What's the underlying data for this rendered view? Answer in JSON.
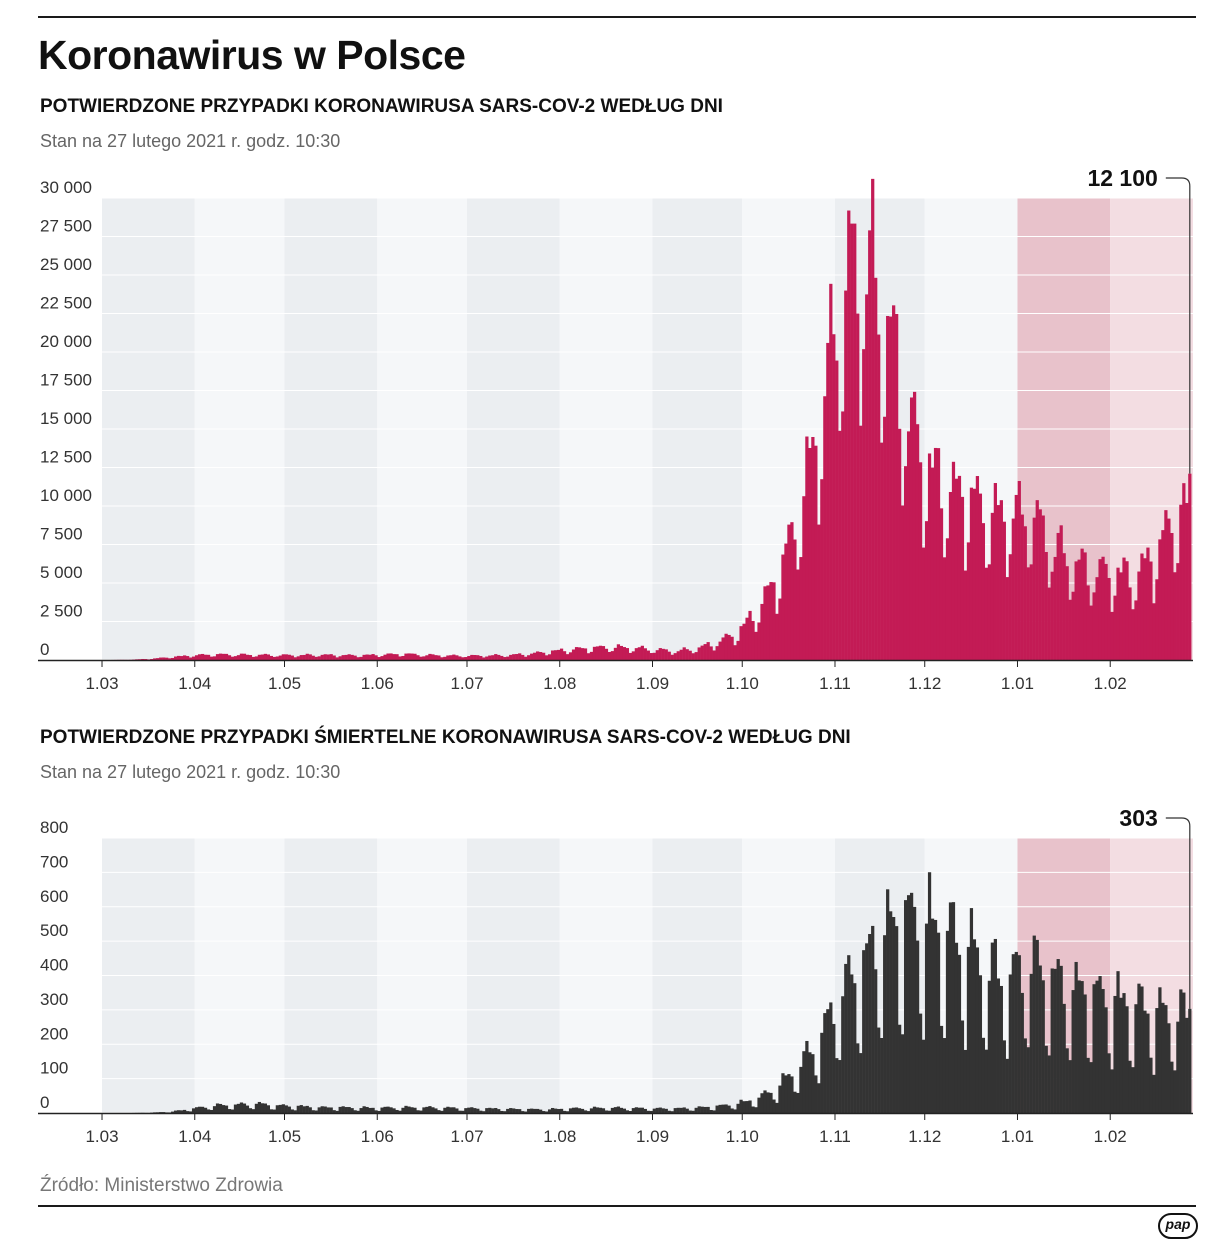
{
  "header": {
    "title": "Koronawirus w Polsce"
  },
  "footer": {
    "source": "Źródło: Ministerstwo Zdrowia",
    "logo_text": "pap"
  },
  "colors": {
    "cases_bar": "#c31b55",
    "deaths_bar": "#333333",
    "stripe_dark": "#ebeef1",
    "stripe_light": "#f5f7f9",
    "highlight_dark": "#e8c2cb",
    "highlight_light": "#f3dde2"
  },
  "chart_data": [
    {
      "type": "bar",
      "title": "POTWIERDZONE PRZYPADKI KORONAWIRUSA SARS-COV-2 WEDŁUG DNI",
      "subtitle": "Stan na 27 lutego 2021 r. godz. 10:30",
      "x_range": [
        "2020-03-03",
        "2021-02-27"
      ],
      "x_tick_labels": [
        "1.03",
        "1.04",
        "1.05",
        "1.06",
        "1.07",
        "1.08",
        "1.09",
        "1.10",
        "1.11",
        "1.12",
        "1.01",
        "1.02"
      ],
      "ylim": [
        0,
        30000
      ],
      "y_ticks": [
        0,
        2500,
        5000,
        7500,
        10000,
        12500,
        15000,
        17500,
        20000,
        22500,
        25000,
        27500,
        30000
      ],
      "y_tick_labels": [
        "0",
        "2 500",
        "5 000",
        "7 500",
        "10 000",
        "12 500",
        "15 000",
        "17 500",
        "20 000",
        "22 500",
        "25 000",
        "27 500",
        "30 000"
      ],
      "highlight_months": [
        "1.01",
        "1.02"
      ],
      "last_value": 12100,
      "last_value_label": "12 100",
      "weekly_estimates": [
        {
          "week_of": "2020-03-03",
          "value": 0
        },
        {
          "week_of": "2020-03-10",
          "value": 20
        },
        {
          "week_of": "2020-03-17",
          "value": 80
        },
        {
          "week_of": "2020-03-24",
          "value": 190
        },
        {
          "week_of": "2020-03-31",
          "value": 290
        },
        {
          "week_of": "2020-04-07",
          "value": 350
        },
        {
          "week_of": "2020-04-14",
          "value": 330
        },
        {
          "week_of": "2020-04-21",
          "value": 320
        },
        {
          "week_of": "2020-04-28",
          "value": 300
        },
        {
          "week_of": "2020-05-05",
          "value": 300
        },
        {
          "week_of": "2020-05-12",
          "value": 320
        },
        {
          "week_of": "2020-05-19",
          "value": 300
        },
        {
          "week_of": "2020-05-26",
          "value": 290
        },
        {
          "week_of": "2020-06-02",
          "value": 330
        },
        {
          "week_of": "2020-06-09",
          "value": 380
        },
        {
          "week_of": "2020-06-16",
          "value": 320
        },
        {
          "week_of": "2020-06-23",
          "value": 280
        },
        {
          "week_of": "2020-06-30",
          "value": 260
        },
        {
          "week_of": "2020-07-07",
          "value": 280
        },
        {
          "week_of": "2020-07-14",
          "value": 300
        },
        {
          "week_of": "2020-07-21",
          "value": 380
        },
        {
          "week_of": "2020-07-28",
          "value": 520
        },
        {
          "week_of": "2020-08-04",
          "value": 650
        },
        {
          "week_of": "2020-08-11",
          "value": 750
        },
        {
          "week_of": "2020-08-18",
          "value": 800
        },
        {
          "week_of": "2020-08-25",
          "value": 750
        },
        {
          "week_of": "2020-09-01",
          "value": 650
        },
        {
          "week_of": "2020-09-08",
          "value": 550
        },
        {
          "week_of": "2020-09-15",
          "value": 700
        },
        {
          "week_of": "2020-09-22",
          "value": 1100
        },
        {
          "week_of": "2020-09-29",
          "value": 1700
        },
        {
          "week_of": "2020-10-06",
          "value": 3200
        },
        {
          "week_of": "2020-10-13",
          "value": 5500
        },
        {
          "week_of": "2020-10-20",
          "value": 9500
        },
        {
          "week_of": "2020-10-27",
          "value": 15500
        },
        {
          "week_of": "2020-11-03",
          "value": 23000
        },
        {
          "week_of": "2020-11-10",
          "value": 25000
        },
        {
          "week_of": "2020-11-17",
          "value": 21500
        },
        {
          "week_of": "2020-11-24",
          "value": 15500
        },
        {
          "week_of": "2020-12-01",
          "value": 12000
        },
        {
          "week_of": "2020-12-08",
          "value": 10500
        },
        {
          "week_of": "2020-12-15",
          "value": 10200
        },
        {
          "week_of": "2020-12-22",
          "value": 9000
        },
        {
          "week_of": "2020-12-29",
          "value": 9000
        },
        {
          "week_of": "2021-01-05",
          "value": 9000
        },
        {
          "week_of": "2021-01-12",
          "value": 7200
        },
        {
          "week_of": "2021-01-19",
          "value": 6000
        },
        {
          "week_of": "2021-01-26",
          "value": 5500
        },
        {
          "week_of": "2021-02-02",
          "value": 5400
        },
        {
          "week_of": "2021-02-09",
          "value": 5200
        },
        {
          "week_of": "2021-02-16",
          "value": 6800
        },
        {
          "week_of": "2021-02-23",
          "value": 9200
        }
      ]
    },
    {
      "type": "bar",
      "title": "POTWIERDZONE PRZYPADKI ŚMIERTELNE KORONAWIRUSA SARS-COV-2 WEDŁUG DNI",
      "subtitle": "Stan na 27 lutego 2021 r. godz. 10:30",
      "x_range": [
        "2020-03-03",
        "2021-02-27"
      ],
      "x_tick_labels": [
        "1.03",
        "1.04",
        "1.05",
        "1.06",
        "1.07",
        "1.08",
        "1.09",
        "1.10",
        "1.11",
        "1.12",
        "1.01",
        "1.02"
      ],
      "ylim": [
        0,
        800
      ],
      "y_ticks": [
        0,
        100,
        200,
        300,
        400,
        500,
        600,
        700,
        800
      ],
      "y_tick_labels": [
        "0",
        "100",
        "200",
        "300",
        "400",
        "500",
        "600",
        "700",
        "800"
      ],
      "highlight_months": [
        "1.01",
        "1.02"
      ],
      "last_value": 303,
      "last_value_label": "303",
      "weekly_estimates": [
        {
          "week_of": "2020-03-03",
          "value": 0
        },
        {
          "week_of": "2020-03-10",
          "value": 0
        },
        {
          "week_of": "2020-03-17",
          "value": 1
        },
        {
          "week_of": "2020-03-24",
          "value": 4
        },
        {
          "week_of": "2020-03-31",
          "value": 12
        },
        {
          "week_of": "2020-04-07",
          "value": 20
        },
        {
          "week_of": "2020-04-14",
          "value": 22
        },
        {
          "week_of": "2020-04-21",
          "value": 25
        },
        {
          "week_of": "2020-04-28",
          "value": 20
        },
        {
          "week_of": "2020-05-05",
          "value": 18
        },
        {
          "week_of": "2020-05-12",
          "value": 15
        },
        {
          "week_of": "2020-05-19",
          "value": 15
        },
        {
          "week_of": "2020-05-26",
          "value": 14
        },
        {
          "week_of": "2020-06-02",
          "value": 14
        },
        {
          "week_of": "2020-06-09",
          "value": 15
        },
        {
          "week_of": "2020-06-16",
          "value": 15
        },
        {
          "week_of": "2020-06-23",
          "value": 14
        },
        {
          "week_of": "2020-06-30",
          "value": 13
        },
        {
          "week_of": "2020-07-07",
          "value": 12
        },
        {
          "week_of": "2020-07-14",
          "value": 11
        },
        {
          "week_of": "2020-07-21",
          "value": 10
        },
        {
          "week_of": "2020-07-28",
          "value": 10
        },
        {
          "week_of": "2020-08-04",
          "value": 12
        },
        {
          "week_of": "2020-08-11",
          "value": 13
        },
        {
          "week_of": "2020-08-18",
          "value": 14
        },
        {
          "week_of": "2020-08-25",
          "value": 13
        },
        {
          "week_of": "2020-09-01",
          "value": 12
        },
        {
          "week_of": "2020-09-08",
          "value": 12
        },
        {
          "week_of": "2020-09-15",
          "value": 14
        },
        {
          "week_of": "2020-09-22",
          "value": 18
        },
        {
          "week_of": "2020-09-29",
          "value": 25
        },
        {
          "week_of": "2020-10-06",
          "value": 40
        },
        {
          "week_of": "2020-10-13",
          "value": 75
        },
        {
          "week_of": "2020-10-20",
          "value": 130
        },
        {
          "week_of": "2020-10-27",
          "value": 210
        },
        {
          "week_of": "2020-11-03",
          "value": 330
        },
        {
          "week_of": "2020-11-10",
          "value": 400
        },
        {
          "week_of": "2020-11-17",
          "value": 480
        },
        {
          "week_of": "2020-11-24",
          "value": 520
        },
        {
          "week_of": "2020-12-01",
          "value": 500
        },
        {
          "week_of": "2020-12-08",
          "value": 480
        },
        {
          "week_of": "2020-12-15",
          "value": 440
        },
        {
          "week_of": "2020-12-22",
          "value": 380
        },
        {
          "week_of": "2020-12-29",
          "value": 360
        },
        {
          "week_of": "2021-01-05",
          "value": 400
        },
        {
          "week_of": "2021-01-12",
          "value": 360
        },
        {
          "week_of": "2021-01-19",
          "value": 330
        },
        {
          "week_of": "2021-01-26",
          "value": 320
        },
        {
          "week_of": "2021-02-02",
          "value": 300
        },
        {
          "week_of": "2021-02-09",
          "value": 290
        },
        {
          "week_of": "2021-02-16",
          "value": 270
        },
        {
          "week_of": "2021-02-23",
          "value": 265
        }
      ]
    }
  ]
}
